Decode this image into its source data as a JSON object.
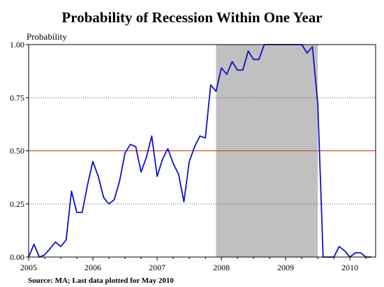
{
  "chart_data": {
    "type": "line",
    "title": "Probability of Recession Within One Year",
    "ylabel": "Probability",
    "source": "Source: MA; Last data plotted for May 2010",
    "xlim": [
      2005.0,
      2010.4
    ],
    "ylim": [
      0,
      1
    ],
    "x_ticks": [
      2005,
      2006,
      2007,
      2008,
      2009,
      2010
    ],
    "x_tick_labels": [
      "2005",
      "2006",
      "2007",
      "2008",
      "2009",
      "2010"
    ],
    "y_ticks": [
      0,
      0.25,
      0.5,
      0.75,
      1.0
    ],
    "y_tick_labels": [
      "0.00",
      "0.25",
      "0.50",
      "0.75",
      "1.00"
    ],
    "grid": "horizontal-dotted",
    "recession_band": {
      "start": 2007.9167,
      "end": 2009.5
    },
    "threshold": 0.5,
    "colors": {
      "line": "#1010cc",
      "threshold": "#cc3300",
      "band": "#c0c0c0",
      "grid": "#555555"
    },
    "series": [
      {
        "values": [
          [
            2005.0,
            0.0
          ],
          [
            2005.0833,
            0.06
          ],
          [
            2005.1667,
            0.0
          ],
          [
            2005.25,
            0.01
          ],
          [
            2005.3333,
            0.04
          ],
          [
            2005.4167,
            0.07
          ],
          [
            2005.5,
            0.05
          ],
          [
            2005.5833,
            0.08
          ],
          [
            2005.6667,
            0.31
          ],
          [
            2005.75,
            0.21
          ],
          [
            2005.8333,
            0.21
          ],
          [
            2005.9167,
            0.34
          ],
          [
            2006.0,
            0.45
          ],
          [
            2006.0833,
            0.38
          ],
          [
            2006.1667,
            0.28
          ],
          [
            2006.25,
            0.25
          ],
          [
            2006.3333,
            0.27
          ],
          [
            2006.4167,
            0.36
          ],
          [
            2006.5,
            0.49
          ],
          [
            2006.5833,
            0.53
          ],
          [
            2006.6667,
            0.52
          ],
          [
            2006.75,
            0.4
          ],
          [
            2006.8333,
            0.47
          ],
          [
            2006.9167,
            0.57
          ],
          [
            2007.0,
            0.38
          ],
          [
            2007.0833,
            0.46
          ],
          [
            2007.1667,
            0.51
          ],
          [
            2007.25,
            0.44
          ],
          [
            2007.3333,
            0.39
          ],
          [
            2007.4167,
            0.26
          ],
          [
            2007.5,
            0.45
          ],
          [
            2007.5833,
            0.52
          ],
          [
            2007.6667,
            0.57
          ],
          [
            2007.75,
            0.56
          ],
          [
            2007.8333,
            0.81
          ],
          [
            2007.9167,
            0.78
          ],
          [
            2008.0,
            0.89
          ],
          [
            2008.0833,
            0.86
          ],
          [
            2008.1667,
            0.92
          ],
          [
            2008.25,
            0.88
          ],
          [
            2008.3333,
            0.88
          ],
          [
            2008.4167,
            0.97
          ],
          [
            2008.5,
            0.93
          ],
          [
            2008.5833,
            0.93
          ],
          [
            2008.6667,
            1.0
          ],
          [
            2008.75,
            1.0
          ],
          [
            2008.8333,
            1.0
          ],
          [
            2008.9167,
            1.0
          ],
          [
            2009.0,
            1.0
          ],
          [
            2009.0833,
            1.0
          ],
          [
            2009.1667,
            1.0
          ],
          [
            2009.25,
            1.0
          ],
          [
            2009.3333,
            0.96
          ],
          [
            2009.4167,
            0.99
          ],
          [
            2009.5,
            0.72
          ],
          [
            2009.5833,
            0.0
          ],
          [
            2009.6667,
            0.0
          ],
          [
            2009.75,
            0.0
          ],
          [
            2009.8333,
            0.05
          ],
          [
            2009.9167,
            0.03
          ],
          [
            2010.0,
            0.0
          ],
          [
            2010.0833,
            0.02
          ],
          [
            2010.1667,
            0.02
          ],
          [
            2010.25,
            0.0
          ],
          [
            2010.3333,
            0.0
          ]
        ]
      }
    ]
  }
}
